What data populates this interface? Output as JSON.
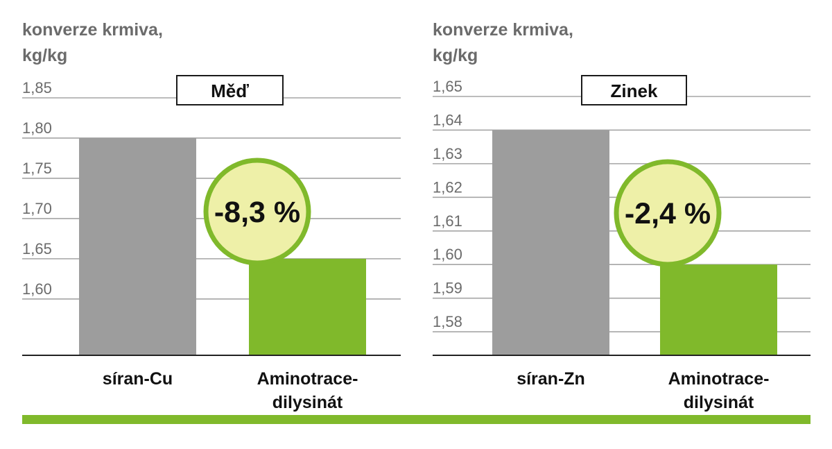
{
  "colors": {
    "base_bar": "#9d9d9d",
    "highlight_bar": "#80b92b",
    "badge_fill": "#eef0a8",
    "badge_stroke": "#80b92b",
    "grid": "#a5a5a5",
    "axis_text": "#6b6b6b",
    "label_text": "#111111",
    "bottom_bar": "#80b92b"
  },
  "chart_data": [
    {
      "type": "bar",
      "title": "Měď",
      "ylabel_lines": [
        "konverze krmiva,",
        "kg/kg"
      ],
      "categories": [
        [
          "síran-Cu"
        ],
        [
          "Aminotrace-",
          "dilysinát"
        ]
      ],
      "values": [
        1.8,
        1.65
      ],
      "yticks": [
        "1,85",
        "1,80",
        "1,75",
        "1,70",
        "1,65",
        "1,60"
      ],
      "tick_values": [
        1.85,
        1.8,
        1.75,
        1.7,
        1.65,
        1.6
      ],
      "ylim": [
        1.53,
        1.85
      ],
      "badge": "-8,3 %",
      "grid": true
    },
    {
      "type": "bar",
      "title": "Zinek",
      "ylabel_lines": [
        "konverze krmiva,",
        "kg/kg"
      ],
      "categories": [
        [
          "síran-Zn"
        ],
        [
          "Aminotrace-",
          "dilysinát"
        ]
      ],
      "values": [
        1.64,
        1.6
      ],
      "yticks": [
        "1,65",
        "1,64",
        "1,63",
        "1,62",
        "1,61",
        "1,60",
        "1,59",
        "1,58"
      ],
      "tick_values": [
        1.65,
        1.64,
        1.63,
        1.62,
        1.61,
        1.6,
        1.59,
        1.58
      ],
      "ylim": [
        1.573,
        1.65
      ],
      "badge": "-2,4 %",
      "grid": true
    }
  ]
}
